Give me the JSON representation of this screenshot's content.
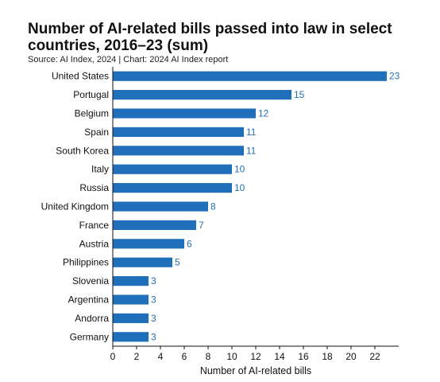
{
  "header": {
    "title": "Number of AI-related bills passed into law in select countries, 2016–23 (sum)",
    "subtitle": "Source: AI Index, 2024 | Chart: 2024 AI Index report"
  },
  "colors": {
    "bar": "#1f6fba",
    "value_label": "#1f6fba",
    "axis": "#111111"
  },
  "chart_data": {
    "type": "bar",
    "orientation": "horizontal",
    "categories": [
      "United States",
      "Portugal",
      "Belgium",
      "Spain",
      "South Korea",
      "Italy",
      "Russia",
      "United Kingdom",
      "France",
      "Austria",
      "Philippines",
      "Slovenia",
      "Argentina",
      "Andorra",
      "Germany"
    ],
    "values": [
      23,
      15,
      12,
      11,
      11,
      10,
      10,
      8,
      7,
      6,
      5,
      3,
      3,
      3,
      3
    ],
    "data_labels": [
      "23",
      "15",
      "12",
      "11",
      "11",
      "10",
      "10",
      "8",
      "7",
      "6",
      "5",
      "3",
      "3",
      "3",
      "3"
    ],
    "title": "Number of AI-related bills passed into law in select countries, 2016–23 (sum)",
    "xlabel": "Number of AI-related bills",
    "ylabel": "",
    "xlim": [
      0,
      24
    ],
    "xticks": [
      0,
      2,
      4,
      6,
      8,
      10,
      12,
      14,
      16,
      18,
      20,
      22
    ],
    "grid": false,
    "legend": "none"
  }
}
